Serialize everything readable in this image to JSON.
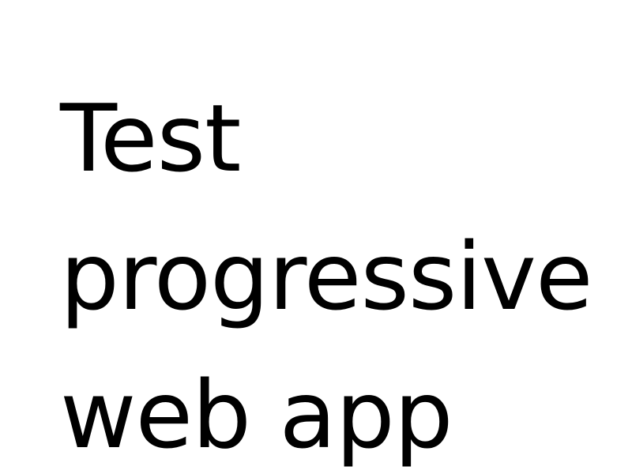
{
  "content": {
    "lines": [
      "Test",
      "progressive",
      "web app"
    ]
  }
}
